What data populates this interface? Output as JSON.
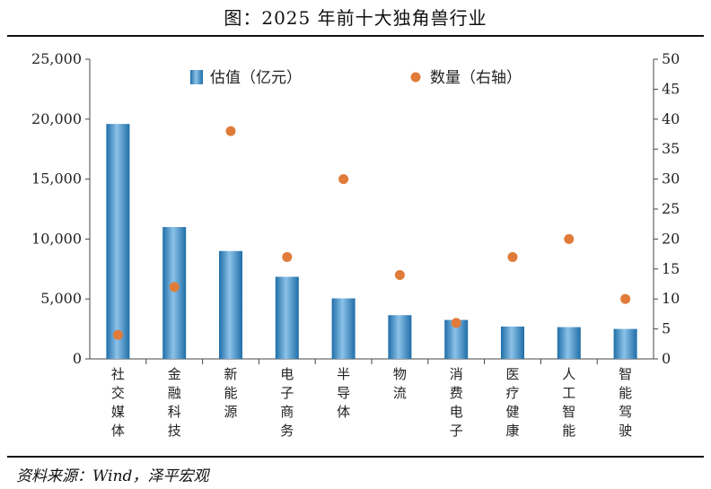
{
  "title": "图：2025 年前十大独角兽行业",
  "source": "资料来源：Wind，泽平宏观",
  "colors": {
    "bar_dark": "#1f6ea8",
    "bar_mid": "#5aa2d6",
    "bar_light": "#8cc2e8",
    "dot": "#e07b39",
    "axis": "#444444"
  },
  "chart_data": {
    "type": "bar",
    "categories": [
      "社交媒体",
      "金融科技",
      "新能源",
      "电子商务",
      "半导体",
      "物流",
      "消费电子",
      "医疗健康",
      "人工智能",
      "智能驾驶"
    ],
    "series": [
      {
        "name": "估值（亿元）",
        "type": "bar",
        "axis": "left",
        "values": [
          19600,
          11000,
          9000,
          6850,
          5050,
          3650,
          3250,
          2700,
          2650,
          2500
        ]
      },
      {
        "name": "数量（右轴）",
        "type": "scatter",
        "axis": "right",
        "values": [
          4,
          12,
          38,
          17,
          30,
          14,
          6,
          17,
          20,
          10
        ]
      }
    ],
    "left_axis": {
      "ylim": [
        0,
        25000
      ],
      "ticks": [
        "0",
        "5,000",
        "10,000",
        "15,000",
        "20,000",
        "25,000"
      ]
    },
    "right_axis": {
      "ylim": [
        0,
        50
      ],
      "ticks": [
        "0",
        "5",
        "10",
        "15",
        "20",
        "25",
        "30",
        "35",
        "40",
        "45",
        "50"
      ]
    },
    "legend_position": "top",
    "grid": false
  }
}
